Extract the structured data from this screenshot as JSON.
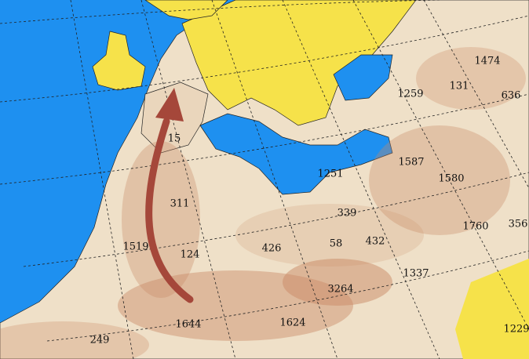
{
  "map_labels": [
    1474,
    131,
    636,
    1259,
    1587,
    1580,
    1251,
    339,
    1760,
    356,
    15,
    311,
    1519,
    124,
    426,
    58,
    432,
    1337,
    3264,
    1644,
    1624,
    249,
    1229
  ]
}
